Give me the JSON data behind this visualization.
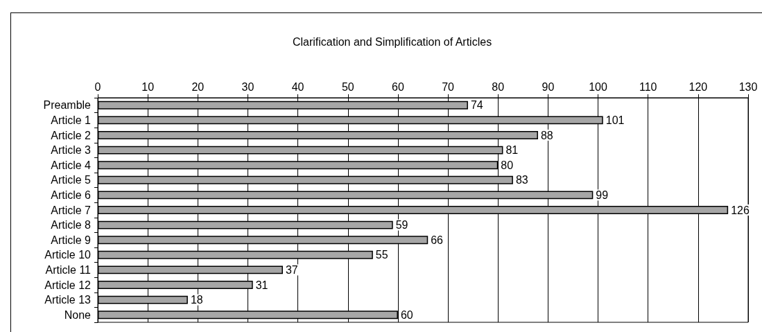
{
  "chart_data": {
    "type": "bar",
    "orientation": "horizontal",
    "title": "Clarification and Simplification of Articles",
    "categories": [
      "Preamble",
      "Article 1",
      "Article 2",
      "Article 3",
      "Article 4",
      "Article 5",
      "Article 6",
      "Article 7",
      "Article 8",
      "Article 9",
      "Article 10",
      "Article 11",
      "Article 12",
      "Article 13",
      "None"
    ],
    "values": [
      74,
      101,
      88,
      81,
      80,
      83,
      99,
      126,
      59,
      66,
      55,
      37,
      31,
      18,
      60
    ],
    "color": "#a6a6a6",
    "xlim": [
      0,
      130
    ],
    "xticks": [
      0,
      10,
      20,
      30,
      40,
      50,
      60,
      70,
      80,
      90,
      100,
      110,
      120,
      130
    ],
    "grid": "x",
    "data_labels": true
  }
}
